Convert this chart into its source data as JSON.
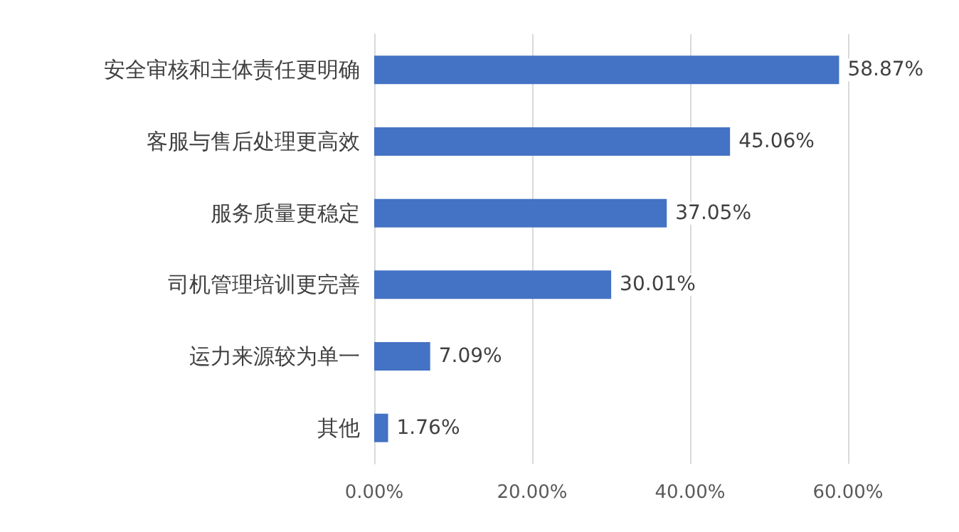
{
  "chart_data": {
    "type": "bar",
    "orientation": "horizontal",
    "categories": [
      "安全审核和主体责任更明确",
      "客服与售后处理更高效",
      "服务质量更稳定",
      "司机管理培训更完善",
      "运力来源较为单一",
      "其他"
    ],
    "values": [
      58.87,
      45.06,
      37.05,
      30.01,
      7.09,
      1.76
    ],
    "value_labels": [
      "58.87%",
      "45.06%",
      "37.05%",
      "30.01%",
      "7.09%",
      "1.76%"
    ],
    "color": "#4472c4",
    "xlim": [
      0,
      60
    ],
    "xticks": [
      {
        "value": 0,
        "label": "0.00%"
      },
      {
        "value": 20,
        "label": "20.00%"
      },
      {
        "value": 40,
        "label": "40.00%"
      },
      {
        "value": 60,
        "label": "60.00%"
      }
    ],
    "grid": "x"
  }
}
